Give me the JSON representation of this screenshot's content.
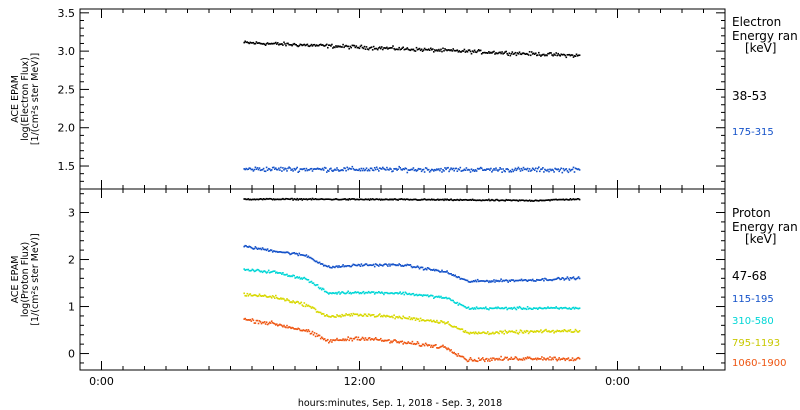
{
  "chart_data": [
    {
      "type": "scatter",
      "ylabel_lines": [
        "ACE EPAM",
        "log(Electron Flux)",
        "[1/(cm²s ster MeV)]"
      ],
      "ylim": [
        1.2,
        3.55
      ],
      "yticks": [
        1.5,
        2.0,
        2.5,
        3.0,
        3.5
      ],
      "ytick_labels": [
        "1.5",
        "2.0",
        "2.5",
        "3.0",
        "3.5"
      ],
      "legend": {
        "title_lines": [
          "Electron",
          "Energy ran"
        ],
        "unit": "[keV]"
      },
      "series": [
        {
          "name": "38-53",
          "color": "#000000",
          "start": 3.12,
          "end": 2.95,
          "noise": 0.035
        },
        {
          "name": "175-315",
          "color": "#1452c9",
          "start": 1.47,
          "end": 1.46,
          "noise": 0.045
        }
      ]
    },
    {
      "type": "scatter",
      "ylabel_lines": [
        "ACE EPAM",
        "log(Proton Flux)",
        "[1/(cm²s ster MeV)]"
      ],
      "ylim": [
        -0.35,
        3.5
      ],
      "yticks": [
        0,
        1,
        2,
        3
      ],
      "ytick_labels": [
        "0",
        "1",
        "2",
        "3"
      ],
      "legend": {
        "title_lines": [
          "Proton",
          "Energy ran"
        ],
        "unit": "[keV]"
      },
      "series": [
        {
          "name": "47-68",
          "color": "#000000",
          "profile": [
            [
              6.5,
              3.3
            ],
            [
              9,
              3.3
            ],
            [
              15,
              3.29
            ],
            [
              20,
              3.27
            ],
            [
              22,
              3.3
            ]
          ],
          "noise": 0.02
        },
        {
          "name": "115-195",
          "color": "#1452c9",
          "profile": [
            [
              6.5,
              2.3
            ],
            [
              8,
              2.2
            ],
            [
              9.5,
              2.1
            ],
            [
              10.5,
              1.85
            ],
            [
              12,
              1.9
            ],
            [
              14,
              1.9
            ],
            [
              16,
              1.75
            ],
            [
              17,
              1.55
            ],
            [
              20,
              1.58
            ],
            [
              22,
              1.62
            ]
          ],
          "noise": 0.04
        },
        {
          "name": "310-580",
          "color": "#00d6d6",
          "profile": [
            [
              6.5,
              1.8
            ],
            [
              8,
              1.75
            ],
            [
              9.5,
              1.6
            ],
            [
              10.5,
              1.3
            ],
            [
              12,
              1.32
            ],
            [
              14,
              1.3
            ],
            [
              16,
              1.2
            ],
            [
              17,
              0.98
            ],
            [
              20,
              0.98
            ],
            [
              22,
              0.98
            ]
          ],
          "noise": 0.04
        },
        {
          "name": "795-1193",
          "color": "#d8d800",
          "profile": [
            [
              6.5,
              1.28
            ],
            [
              8,
              1.22
            ],
            [
              9.5,
              1.05
            ],
            [
              10.5,
              0.8
            ],
            [
              12,
              0.85
            ],
            [
              14,
              0.78
            ],
            [
              16,
              0.68
            ],
            [
              17,
              0.45
            ],
            [
              20,
              0.48
            ],
            [
              22,
              0.5
            ]
          ],
          "noise": 0.05
        },
        {
          "name": "1060-1900",
          "color": "#ee5511",
          "profile": [
            [
              6.5,
              0.75
            ],
            [
              8,
              0.65
            ],
            [
              9.5,
              0.5
            ],
            [
              10.5,
              0.28
            ],
            [
              12,
              0.35
            ],
            [
              14,
              0.25
            ],
            [
              16,
              0.15
            ],
            [
              17,
              -0.12
            ],
            [
              20,
              -0.08
            ],
            [
              22,
              -0.1
            ]
          ],
          "noise": 0.06
        }
      ]
    }
  ],
  "x_axis": {
    "label": "hours:minutes, Sep.  1, 2018 - Sep.  3, 2018",
    "xlim": [
      -1,
      29
    ],
    "major_ticks": [
      0,
      12,
      24
    ],
    "major_labels": [
      "0:00",
      "12:00",
      "0:00"
    ],
    "data_range": [
      6.6,
      22.2
    ]
  }
}
